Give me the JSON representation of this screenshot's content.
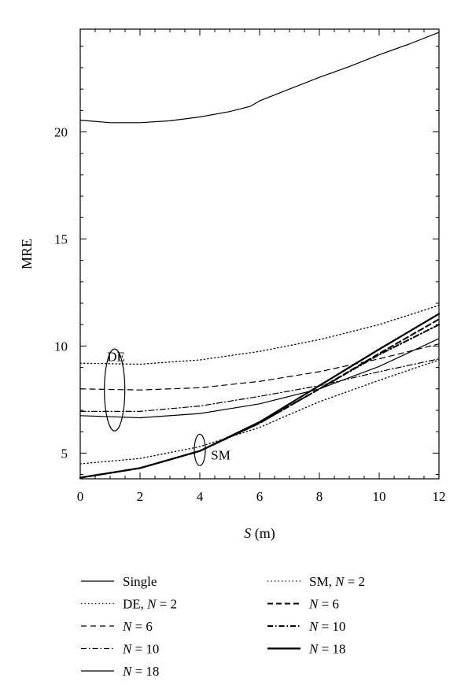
{
  "chart_data": {
    "type": "line",
    "xlabel": {
      "var": "S",
      "unit": " (m)"
    },
    "ylabel": "MRE",
    "xlim": [
      0,
      12
    ],
    "ylim": [
      3.8,
      24.8
    ],
    "xticks": [
      0,
      2,
      4,
      6,
      8,
      10,
      12
    ],
    "yticks": [
      5,
      10,
      15,
      20
    ],
    "x_minor_step": 0.5,
    "y_minor_step": 1,
    "grid": false,
    "legend_position": "below-plot",
    "annotations": [
      {
        "text": "DE",
        "x": 1.2,
        "y": 9.3
      },
      {
        "text": "SM",
        "x": 4.7,
        "y": 4.7
      }
    ],
    "legend_columns": [
      [
        {
          "label": "Single",
          "style": "solid"
        },
        {
          "label": "DE, ",
          "var": "N",
          "eq": " = 2",
          "style": "dotted"
        },
        {
          "label": "",
          "var": "N",
          "eq": " = 6",
          "style": "dashed"
        },
        {
          "label": "",
          "var": "N",
          "eq": " = 10",
          "style": "dashdot"
        },
        {
          "label": "",
          "var": "N",
          "eq": " = 18",
          "style": "solid"
        }
      ],
      [
        {
          "label": "SM, ",
          "var": "N",
          "eq": " = 2",
          "style": "dotted"
        },
        {
          "label": "",
          "var": "N",
          "eq": " = 6",
          "style": "dashed-bold"
        },
        {
          "label": "",
          "var": "N",
          "eq": " = 10",
          "style": "dashdot-bold"
        },
        {
          "label": "",
          "var": "N",
          "eq": " = 18",
          "style": "solid-bold"
        }
      ]
    ],
    "series": [
      {
        "legend": "Single",
        "style": "solid",
        "x": [
          0,
          1,
          2,
          3,
          4,
          5,
          5.7,
          6,
          7,
          8,
          9,
          10,
          11,
          12
        ],
        "y": [
          20.55,
          20.43,
          20.43,
          20.52,
          20.7,
          20.95,
          21.2,
          21.45,
          22.0,
          22.55,
          23.05,
          23.6,
          24.1,
          24.65
        ]
      },
      {
        "legend": "DE, N = 2",
        "style": "dotted",
        "x": [
          0,
          2,
          4,
          6,
          8,
          10,
          12
        ],
        "y": [
          9.2,
          9.15,
          9.35,
          9.75,
          10.3,
          11.0,
          11.9
        ]
      },
      {
        "legend": "DE, N = 6",
        "style": "dashed",
        "x": [
          0,
          2,
          4,
          6,
          8,
          10,
          12
        ],
        "y": [
          8.0,
          7.95,
          8.05,
          8.35,
          8.8,
          9.4,
          10.1
        ]
      },
      {
        "legend": "DE, N = 10",
        "style": "dashdot",
        "x": [
          0,
          2,
          4,
          6,
          8,
          10,
          12
        ],
        "y": [
          6.95,
          6.95,
          7.2,
          7.65,
          8.15,
          8.8,
          9.4
        ]
      },
      {
        "legend": "DE, N = 18",
        "style": "solid",
        "x": [
          0,
          2,
          4,
          6,
          8,
          10,
          12
        ],
        "y": [
          6.75,
          6.65,
          6.85,
          7.3,
          8.0,
          9.05,
          10.35
        ]
      },
      {
        "legend": "SM, N = 2",
        "style": "dotted",
        "x": [
          0,
          2,
          4,
          6,
          8,
          10,
          12
        ],
        "y": [
          4.5,
          4.75,
          5.3,
          6.2,
          7.4,
          8.4,
          9.35
        ]
      },
      {
        "legend": "SM, N = 6",
        "style": "dashed-bold",
        "x": [
          0,
          2,
          4,
          6,
          8,
          10,
          12
        ],
        "y": [
          3.85,
          4.3,
          5.1,
          6.4,
          8.0,
          9.65,
          11.25
        ]
      },
      {
        "legend": "SM, N = 10",
        "style": "dashdot-bold",
        "x": [
          0,
          2,
          4,
          6,
          8,
          10,
          12
        ],
        "y": [
          3.85,
          4.3,
          5.1,
          6.4,
          8.0,
          9.6,
          11.0
        ]
      },
      {
        "legend": "SM, N = 18",
        "style": "solid-bold",
        "x": [
          0,
          2,
          4,
          6,
          8,
          10,
          12
        ],
        "y": [
          3.85,
          4.3,
          5.1,
          6.45,
          8.15,
          9.85,
          11.5
        ]
      }
    ]
  }
}
